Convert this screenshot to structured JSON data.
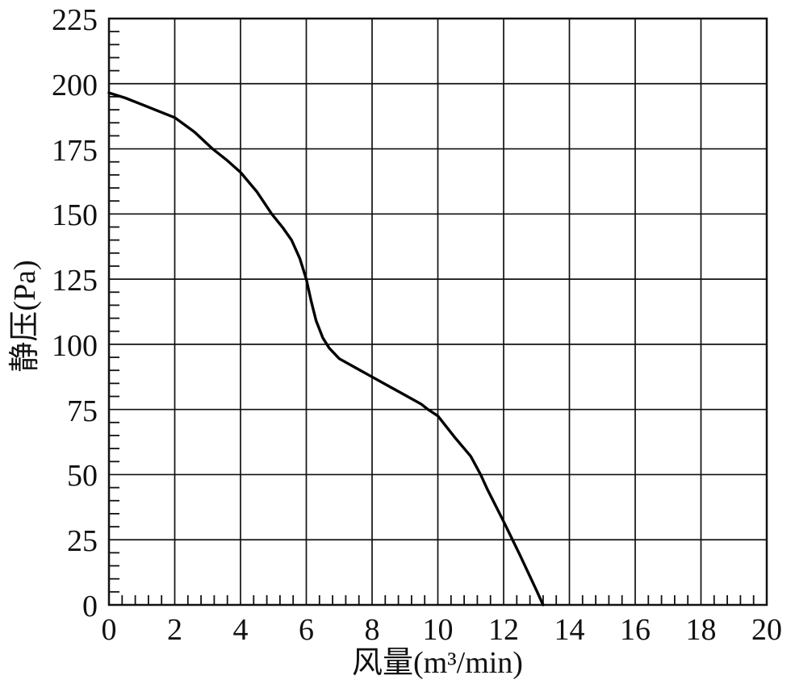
{
  "chart_data": {
    "type": "line",
    "title": "",
    "xlabel": "风量(m³/min)",
    "ylabel": "静压(Pa)",
    "xlim": [
      0,
      20
    ],
    "ylim": [
      0,
      225
    ],
    "x_major_step": 2,
    "x_minor_step": 0.4,
    "y_major_step": 25,
    "y_minor_step": 5,
    "grid": "major gridlines on, both axes, full box border",
    "legend": "none",
    "x_tick_labels": [
      "0",
      "2",
      "4",
      "6",
      "8",
      "10",
      "12",
      "14",
      "16",
      "18",
      "20"
    ],
    "x_tick_values": [
      0,
      2,
      4,
      6,
      8,
      10,
      12,
      14,
      16,
      18,
      20
    ],
    "y_tick_labels": [
      "225",
      "200",
      "175",
      "150",
      "125",
      "100",
      "75",
      "50",
      "25",
      "0"
    ],
    "y_tick_values": [
      225,
      200,
      175,
      150,
      125,
      100,
      75,
      50,
      25,
      0
    ],
    "series": [
      {
        "points": [
          [
            0,
            196.5
          ],
          [
            0.5,
            194.5
          ],
          [
            1,
            192
          ],
          [
            1.5,
            189.5
          ],
          [
            2,
            187
          ],
          [
            2.6,
            181.5
          ],
          [
            3.15,
            175
          ],
          [
            3.6,
            170.5
          ],
          [
            4,
            166
          ],
          [
            4.5,
            158.5
          ],
          [
            4.95,
            150
          ],
          [
            5.3,
            144.5
          ],
          [
            5.55,
            140
          ],
          [
            5.8,
            133
          ],
          [
            6,
            125
          ],
          [
            6.15,
            116.5
          ],
          [
            6.3,
            109
          ],
          [
            6.5,
            102.5
          ],
          [
            6.7,
            98.5
          ],
          [
            7,
            94.5
          ],
          [
            7.5,
            91
          ],
          [
            8,
            87.5
          ],
          [
            8.5,
            84
          ],
          [
            9,
            80.5
          ],
          [
            9.5,
            77
          ],
          [
            9.7,
            75
          ],
          [
            10,
            72.5
          ],
          [
            10.5,
            64.5
          ],
          [
            11,
            57
          ],
          [
            11.3,
            50
          ],
          [
            11.5,
            44.5
          ],
          [
            12,
            32
          ],
          [
            12.5,
            19
          ],
          [
            13,
            5.5
          ],
          [
            13.2,
            0
          ]
        ]
      }
    ],
    "colors": {
      "background": "#ffffff",
      "ink": "#111111",
      "grid": "#111111",
      "curve": "#000000"
    }
  }
}
